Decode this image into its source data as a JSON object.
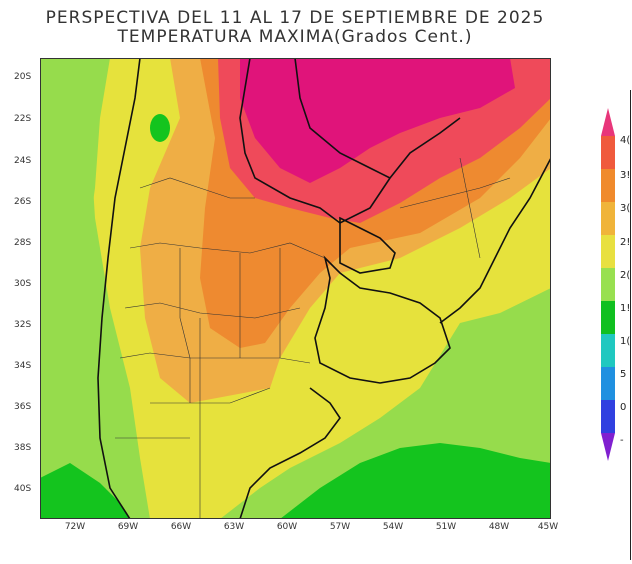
{
  "header": {
    "title": "PERSPECTIVA DEL 11 AL 17 DE SEPTIEMBRE DE 2025",
    "subtitle": "TEMPERATURA MAXIMA(Grados Cent.)"
  },
  "axes": {
    "lat_labels": [
      "20S",
      "22S",
      "24S",
      "26S",
      "28S",
      "30S",
      "32S",
      "34S",
      "36S",
      "38S",
      "40S"
    ],
    "lon_labels": [
      "72W",
      "69W",
      "66W",
      "63W",
      "60W",
      "57W",
      "54W",
      "51W",
      "48W",
      "45W"
    ]
  },
  "legend": {
    "labels": [
      "4(",
      "3!",
      "3(",
      "2!",
      "2(",
      "1!",
      "1(",
      "5",
      "0",
      "-"
    ],
    "colors": [
      "#e8367a",
      "#f05a3c",
      "#f08a2c",
      "#f0b43a",
      "#e8e040",
      "#98e050",
      "#10c020",
      "#20c8c0",
      "#2090e0",
      "#3040e0",
      "#8020d0"
    ]
  },
  "map_colors": {
    "magenta": "#e0147a",
    "red": "#ef4a5a",
    "orange": "#ee8a30",
    "light_orange": "#efae45",
    "yellow": "#e6e23c",
    "light_green": "#96dc4c",
    "green": "#14c41e"
  }
}
